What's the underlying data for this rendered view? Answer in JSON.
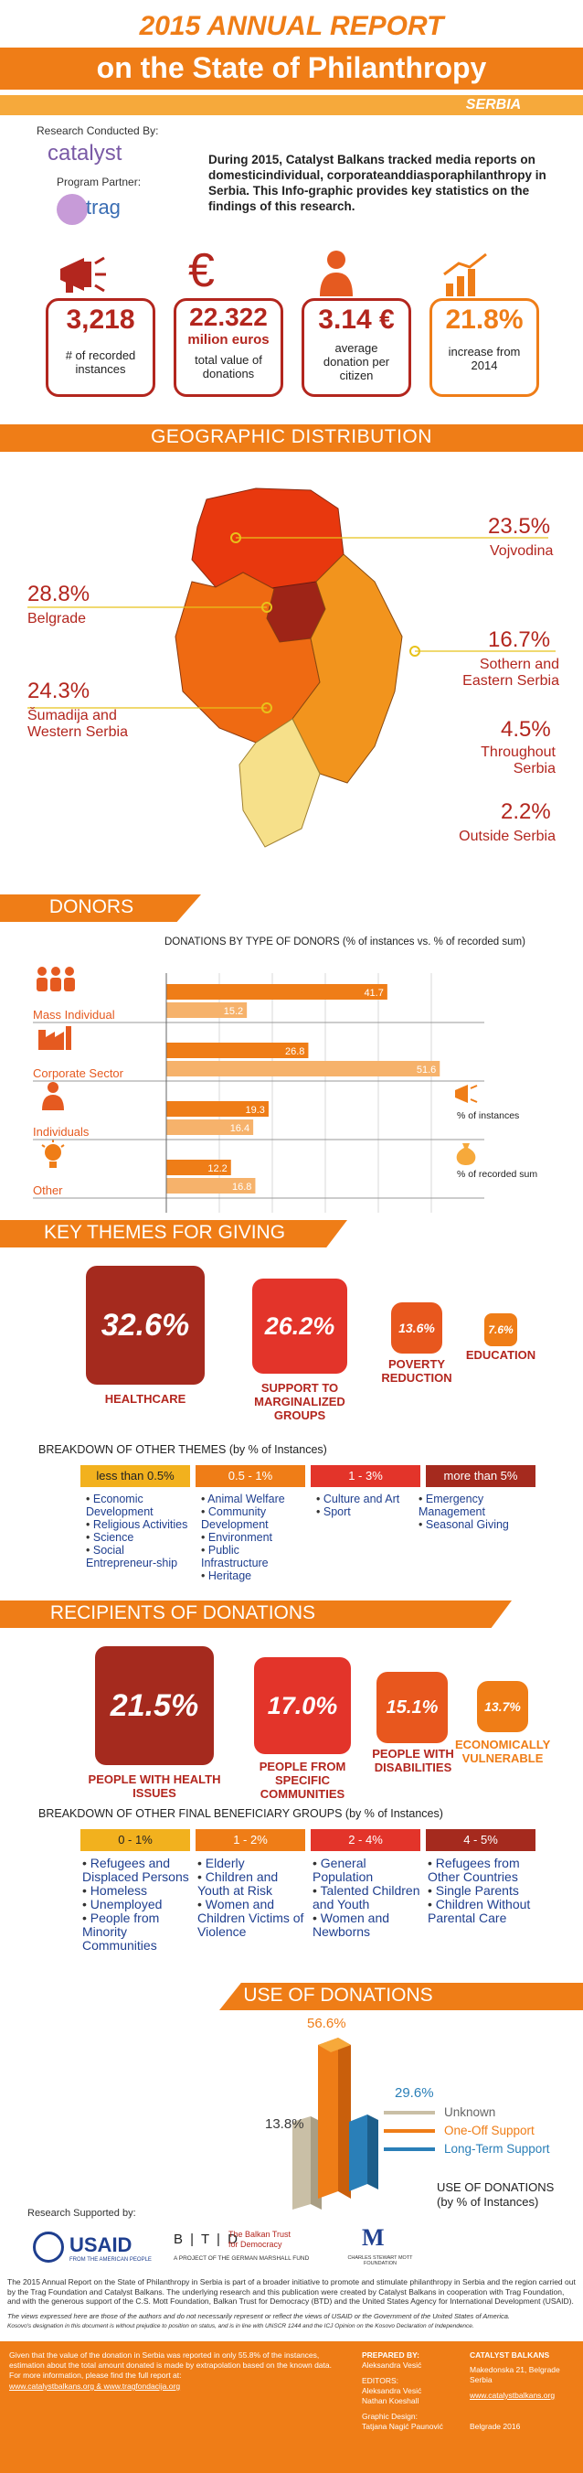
{
  "header": {
    "year_title": "2015 ANNUAL REPORT",
    "subtitle": "on the State of Philanthropy",
    "country": "SERBIA"
  },
  "intro": {
    "conducted_by": "Research Conducted By:",
    "catalyst_logo": "catalyst",
    "program_partner": "Program Partner:",
    "trag_logo": "trag",
    "text": "During 2015, Catalyst Balkans tracked media reports on domesticindividual, corporateanddiasporaphilanthropy in Serbia. This Info-graphic provides key statistics on the findings of this research."
  },
  "kpis": [
    {
      "icon": "megaphone-icon",
      "value": "3,218",
      "label": "# of recorded instances"
    },
    {
      "icon": "euro-icon",
      "value": "22.322",
      "unit": "milion euros",
      "label": "total value of donations"
    },
    {
      "icon": "person-icon",
      "value": "3.14 €",
      "label": "average donation per citizen"
    },
    {
      "icon": "growth-chart-icon",
      "value": "21.8%",
      "label": "increase from 2014"
    }
  ],
  "geo": {
    "title": "GEOGRAPHIC DISTRIBUTION",
    "regions": [
      {
        "pct": "23.5%",
        "name": "Vojvodina"
      },
      {
        "pct": "28.8%",
        "name": "Belgrade"
      },
      {
        "pct": "16.7%",
        "name": "Sothern and Eastern  Serbia"
      },
      {
        "pct": "24.3%",
        "name": "Šumadija and Western Serbia"
      },
      {
        "pct": "4.5%",
        "name": "Throughout Serbia"
      },
      {
        "pct": "2.2%",
        "name": "Outside Serbia"
      }
    ]
  },
  "donors": {
    "title": "DONORS",
    "chart_title": "DONATIONS BY TYPE OF DONORS (% of instances vs. % of recorded sum)",
    "legend_instances": "% of instances",
    "legend_sum": "% of recorded sum",
    "colors": {
      "instances": "#ef7d17",
      "sum": "#f6b26b"
    }
  },
  "chart_data": {
    "type": "bar",
    "orientation": "horizontal",
    "title": "DONATIONS BY TYPE OF DONORS (% of instances vs. % of recorded sum)",
    "categories": [
      "Mass Individual",
      "Corporate Sector",
      "Individuals",
      "Other"
    ],
    "series": [
      {
        "name": "% of instances",
        "values": [
          41.7,
          26.8,
          19.3,
          12.2
        ]
      },
      {
        "name": "% of recorded sum",
        "values": [
          15.2,
          51.6,
          16.4,
          16.8
        ]
      }
    ],
    "xlim": [
      0,
      60
    ],
    "xticks": [
      0,
      10,
      20,
      30,
      40,
      50
    ],
    "legend": "right"
  },
  "themes": {
    "title": "KEY THEMES FOR GIVING",
    "items": [
      {
        "value": "32.6%",
        "label": "HEALTHCARE"
      },
      {
        "value": "26.2%",
        "label": "SUPPORT TO MARGINALIZED GROUPS"
      },
      {
        "value": "13.6%",
        "label": "POVERTY REDUCTION"
      },
      {
        "value": "7.6%",
        "label": "EDUCATION"
      }
    ],
    "breakdown_title": "BREAKDOWN OF OTHER THEMES (by % of Instances)",
    "groups": [
      {
        "range": "less than 0.5%",
        "items": [
          "Economic Development",
          "Religious Activities",
          "Science",
          "Social Entrepreneur-ship"
        ]
      },
      {
        "range": "0.5 - 1%",
        "items": [
          "Animal Welfare",
          "Community Development",
          "Environment",
          "Public Infrastructure",
          "Heritage"
        ]
      },
      {
        "range": "1 - 3%",
        "items": [
          "Culture and Art",
          "Sport"
        ]
      },
      {
        "range": "more than 5%",
        "items": [
          "Emergency Management",
          "Seasonal Giving"
        ]
      }
    ]
  },
  "recipients": {
    "title": "RECIPIENTS OF DONATIONS",
    "items": [
      {
        "value": "21.5%",
        "label": "PEOPLE WITH HEALTH ISSUES"
      },
      {
        "value": "17.0%",
        "label": "PEOPLE FROM SPECIFIC COMMUNITIES"
      },
      {
        "value": "15.1%",
        "label": "PEOPLE WITH DISABILITIES"
      },
      {
        "value": "13.7%",
        "label": "ECONOMICALLY VULNERABLE"
      }
    ],
    "breakdown_title": "BREAKDOWN OF OTHER FINAL BENEFICIARY GROUPS (by % of Instances)",
    "groups": [
      {
        "range": "0 - 1%",
        "items": [
          "Refugees and Displaced Persons",
          "Homeless",
          "Unemployed",
          "People from Minority Communities"
        ]
      },
      {
        "range": "1 - 2%",
        "items": [
          "Elderly",
          "Children and Youth at Risk",
          "Women and Children Victims of Violence"
        ]
      },
      {
        "range": "2 - 4%",
        "items": [
          "General Population",
          "Talented Children and Youth",
          "Women and Newborns"
        ]
      },
      {
        "range": "4 - 5%",
        "items": [
          "Refugees from Other Countries",
          "Single Parents",
          "Children Without Parental Care"
        ]
      }
    ]
  },
  "use": {
    "title": "USE OF DONATIONS",
    "bars": [
      {
        "name": "Unknown",
        "value": "13.8%",
        "color": "#c9bfa6"
      },
      {
        "name": "One-Off Support",
        "value": "56.6%",
        "color": "#ef7d17"
      },
      {
        "name": "Long-Term Support",
        "value": "29.6%",
        "color": "#2a7fb8"
      }
    ],
    "caption": "USE OF DONATIONS (by % of Instances)"
  },
  "supporters": {
    "label": "Research Supported by:",
    "usaid": "USAID",
    "usaid_sub": "FROM THE AMERICAN PEOPLE",
    "btd": "B | T | D",
    "btd_name": "The Balkan Trust for Democracy",
    "btd_sub": "A PROJECT OF THE GERMAN MARSHALL FUND",
    "mott": "M",
    "mott_sub": "CHARLES STEWART MOTT FOUNDATION"
  },
  "disclaimer": {
    "p1": "The 2015 Annual Report on the State of Philanthropy in Serbia is part of a broader initiative to promote and stimulate philanthropy in Serbia and the region carried out by the Trag Foundation and Catalyst Balkans. The underlying research and this publication were created by Catalyst Balkans in cooperation with Trag Foundation, and with the generous support of the C.S. Mott Foundation, Balkan Trust for Democracy (BTD) and the United States Agency for International Development (USAID).",
    "p2": "The views expressed here are those of the authors and do not necessarily represent or reflect the views of USAID or the Government of the United States of America.",
    "p3": "Kosovo's designation in this document is without prejudice to position on status, and is in line with UNSCR 1244 and the ICJ Opinion on the Kosovo Declaration of Independence."
  },
  "footer": {
    "note": "Given that the value of the donation in Serbia was reported in only 55.8% of the instances, estimation about the total amount donated is made by extrapolation based on the known data. For more information, please find the full report at:",
    "links": "www.catalystbalkans.org & www.tragfondacija.org",
    "prepared_by": "PREPARED BY:",
    "prepared_name": "Aleksandra Vesić",
    "editors": "EDITORS:",
    "editor1": "Aleksandra Vesić",
    "editor2": "Nathan Koeshall",
    "design": "Graphic Design:",
    "designer": "Tatjana Nagić Paunović",
    "org": "CATALYST BALKANS",
    "address": "Makedonska 21, Belgrade Serbia",
    "website": "www.catalystbalkans.org",
    "date": "Belgrade 2016"
  }
}
